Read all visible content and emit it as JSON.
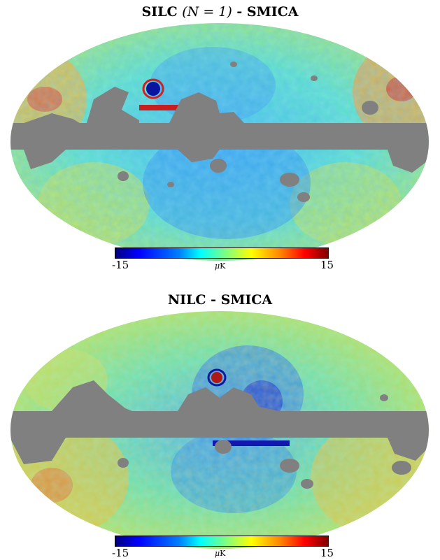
{
  "panels": [
    {
      "title_prefix": "SILC ",
      "title_math": "(N = 1)",
      "title_suffix": " - SMICA",
      "colorbar": {
        "min_label": "-15",
        "max_label": "15",
        "unit_mu": "μ",
        "unit_rest": "K"
      }
    },
    {
      "title_prefix": "NILC - SMICA",
      "title_math": "",
      "title_suffix": "",
      "colorbar": {
        "min_label": "-15",
        "max_label": "15",
        "unit_mu": "μ",
        "unit_rest": "K"
      }
    }
  ],
  "colors": {
    "mask_gray": "#808080",
    "cmap": [
      "#00007f",
      "#0000ff",
      "#0080ff",
      "#00ffff",
      "#7fff80",
      "#ffff00",
      "#ff8000",
      "#ff0000",
      "#7f0000"
    ]
  }
}
